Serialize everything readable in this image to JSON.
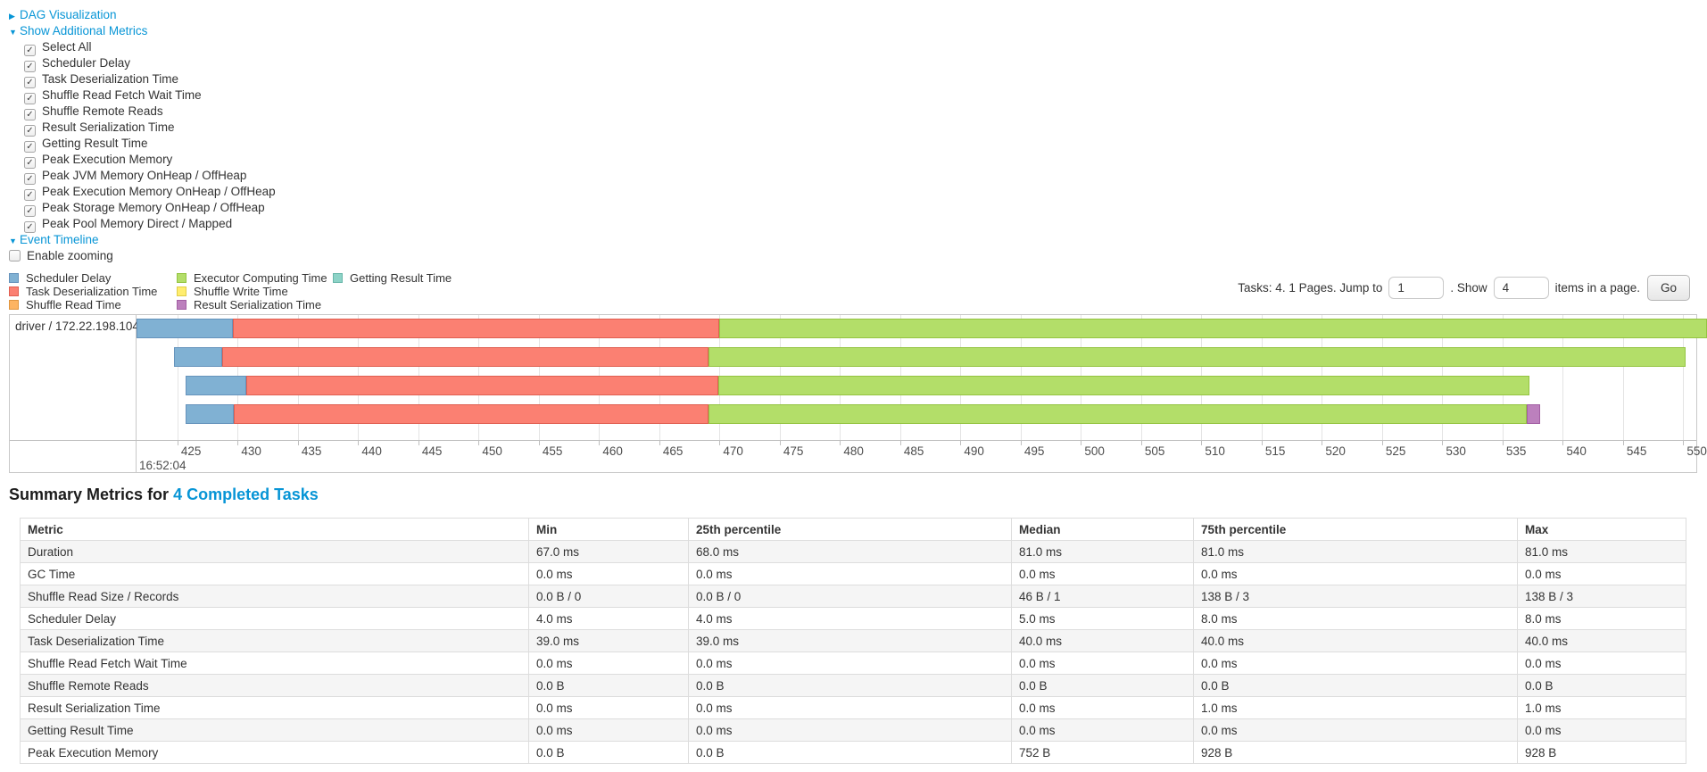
{
  "colors": {
    "link": "#0795d6",
    "gridline": "#e4e4e4",
    "chart_border": "#c8c8c8",
    "stripe": "#f5f5f5",
    "bar_colors": {
      "scheduler_delay": {
        "fill": "#80B1D3",
        "border": "#6593BC"
      },
      "task_deserialization": {
        "fill": "#FB8072",
        "border": "#E05F51"
      },
      "shuffle_read": {
        "fill": "#FDB462",
        "border": "#E0953F"
      },
      "executor_computing": {
        "fill": "#B3DE69",
        "border": "#94C441"
      },
      "shuffle_write": {
        "fill": "#FFED6F",
        "border": "#E0CE48"
      },
      "result_serialization": {
        "fill": "#BC80BD",
        "border": "#A25EA3"
      },
      "getting_result": {
        "fill": "#8DD3C7",
        "border": "#69B7AA"
      }
    }
  },
  "sections": {
    "dag": {
      "label": "DAG Visualization",
      "collapsed": true
    },
    "metrics": {
      "label": "Show Additional Metrics",
      "collapsed": false
    },
    "metric_checkboxes": [
      {
        "label": "Select All",
        "checked": true
      },
      {
        "label": "Scheduler Delay",
        "checked": true
      },
      {
        "label": "Task Deserialization Time",
        "checked": true
      },
      {
        "label": "Shuffle Read Fetch Wait Time",
        "checked": true
      },
      {
        "label": "Shuffle Remote Reads",
        "checked": true
      },
      {
        "label": "Result Serialization Time",
        "checked": true
      },
      {
        "label": "Getting Result Time",
        "checked": true
      },
      {
        "label": "Peak Execution Memory",
        "checked": true
      },
      {
        "label": "Peak JVM Memory OnHeap / OffHeap",
        "checked": true
      },
      {
        "label": "Peak Execution Memory OnHeap / OffHeap",
        "checked": true
      },
      {
        "label": "Peak Storage Memory OnHeap / OffHeap",
        "checked": true
      },
      {
        "label": "Peak Pool Memory Direct / Mapped",
        "checked": true
      }
    ],
    "event_timeline": {
      "label": "Event Timeline",
      "collapsed": false
    },
    "enable_zooming": {
      "label": "Enable zooming",
      "checked": false
    }
  },
  "legend_columns": [
    [
      {
        "key": "scheduler_delay",
        "label": "Scheduler Delay"
      },
      {
        "key": "task_deserialization",
        "label": "Task Deserialization Time"
      },
      {
        "key": "shuffle_read",
        "label": "Shuffle Read Time"
      }
    ],
    [
      {
        "key": "executor_computing",
        "label": "Executor Computing Time"
      },
      {
        "key": "shuffle_write",
        "label": "Shuffle Write Time"
      },
      {
        "key": "result_serialization",
        "label": "Result Serialization Time"
      }
    ],
    [
      {
        "key": "getting_result",
        "label": "Getting Result Time"
      }
    ]
  ],
  "pagination": {
    "prefix": "Tasks: 4. 1 Pages. Jump to",
    "jump_value": "1",
    "show_text": ". Show",
    "show_value": "4",
    "suffix": "items in a page.",
    "go_label": "Go"
  },
  "chart_data": {
    "type": "timeline",
    "row_label": "driver / 172.22.198.104",
    "x_axis": {
      "tick_start": 425,
      "tick_end": 550,
      "tick_step": 5,
      "window": [
        421.6,
        551.1
      ],
      "major_label": "16:52:04",
      "unit": "milliseconds within second 16:52:04"
    },
    "tasks": [
      {
        "segments": [
          [
            "scheduler_delay",
            421.6,
            429.6
          ],
          [
            "task_deserialization",
            429.6,
            470.0
          ],
          [
            "executor_computing",
            470.0,
            552.0
          ]
        ]
      },
      {
        "segments": [
          [
            "scheduler_delay",
            424.7,
            428.7
          ],
          [
            "task_deserialization",
            428.7,
            469.1
          ],
          [
            "executor_computing",
            469.1,
            550.2
          ]
        ]
      },
      {
        "segments": [
          [
            "scheduler_delay",
            425.7,
            430.7
          ],
          [
            "task_deserialization",
            430.7,
            469.9
          ],
          [
            "executor_computing",
            469.9,
            537.2
          ]
        ]
      },
      {
        "segments": [
          [
            "scheduler_delay",
            425.7,
            429.7
          ],
          [
            "task_deserialization",
            429.7,
            469.1
          ],
          [
            "executor_computing",
            469.1,
            537.0
          ],
          [
            "result_serialization",
            537.0,
            538.1
          ]
        ]
      }
    ]
  },
  "summary": {
    "title_prefix": "Summary Metrics for",
    "title_link": "4 Completed Tasks",
    "table": {
      "headers": [
        "Metric",
        "Min",
        "25th percentile",
        "Median",
        "75th percentile",
        "Max"
      ],
      "rows": [
        {
          "metric": "Duration",
          "values": [
            "67.0 ms",
            "68.0 ms",
            "81.0 ms",
            "81.0 ms",
            "81.0 ms"
          ]
        },
        {
          "metric": "GC Time",
          "values": [
            "0.0 ms",
            "0.0 ms",
            "0.0 ms",
            "0.0 ms",
            "0.0 ms"
          ]
        },
        {
          "metric": "Shuffle Read Size / Records",
          "values": [
            "0.0 B / 0",
            "0.0 B / 0",
            "46 B / 1",
            "138 B / 3",
            "138 B / 3"
          ]
        },
        {
          "metric": "Scheduler Delay",
          "values": [
            "4.0 ms",
            "4.0 ms",
            "5.0 ms",
            "8.0 ms",
            "8.0 ms"
          ]
        },
        {
          "metric": "Task Deserialization Time",
          "values": [
            "39.0 ms",
            "39.0 ms",
            "40.0 ms",
            "40.0 ms",
            "40.0 ms"
          ]
        },
        {
          "metric": "Shuffle Read Fetch Wait Time",
          "values": [
            "0.0 ms",
            "0.0 ms",
            "0.0 ms",
            "0.0 ms",
            "0.0 ms"
          ]
        },
        {
          "metric": "Shuffle Remote Reads",
          "values": [
            "0.0 B",
            "0.0 B",
            "0.0 B",
            "0.0 B",
            "0.0 B"
          ]
        },
        {
          "metric": "Result Serialization Time",
          "values": [
            "0.0 ms",
            "0.0 ms",
            "0.0 ms",
            "1.0 ms",
            "1.0 ms"
          ]
        },
        {
          "metric": "Getting Result Time",
          "values": [
            "0.0 ms",
            "0.0 ms",
            "0.0 ms",
            "0.0 ms",
            "0.0 ms"
          ]
        },
        {
          "metric": "Peak Execution Memory",
          "values": [
            "0.0 B",
            "0.0 B",
            "752 B",
            "928 B",
            "928 B"
          ]
        }
      ]
    }
  }
}
